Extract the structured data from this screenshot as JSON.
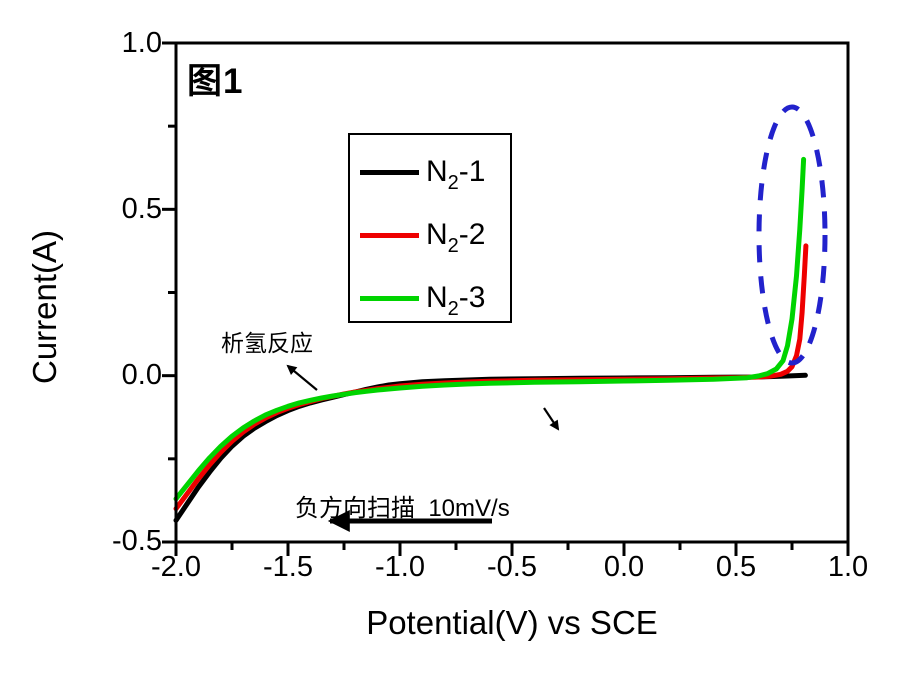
{
  "chart_data": {
    "type": "line",
    "title": "图1",
    "xlabel": "Potential(V) vs SCE",
    "ylabel": "Current(A)",
    "xlim": [
      -2.0,
      1.0
    ],
    "ylim": [
      -0.5,
      1.0
    ],
    "grid": false,
    "x_ticks": [
      -2.0,
      -1.5,
      -1.0,
      -0.5,
      0.0,
      0.5,
      1.0
    ],
    "x_minor_ticks": [
      -1.75,
      -1.25,
      -0.75,
      -0.25,
      0.25,
      0.75
    ],
    "y_ticks": [
      1.0,
      0.5,
      0.0,
      -0.5
    ],
    "y_minor_ticks": [
      0.75,
      0.25,
      -0.25
    ],
    "x_tick_labels": [
      "-2.0",
      "-1.5",
      "-1.0",
      "-0.5",
      "0.0",
      "0.5",
      "1.0"
    ],
    "y_tick_labels": [
      "1.0",
      "0.5",
      "0.0",
      "-0.5"
    ],
    "legend": {
      "position": "upper-left-of-center",
      "items": [
        {
          "pre": "N",
          "sub": "2",
          "post": "-1",
          "color": "#000000"
        },
        {
          "pre": "N",
          "sub": "2",
          "post": "-2",
          "color": "#ee0000"
        },
        {
          "pre": "N",
          "sub": "2",
          "post": "-3",
          "color": "#00d400"
        }
      ]
    },
    "series": [
      {
        "name": "N2-1",
        "color": "#000000",
        "width": 5,
        "points": [
          [
            -2.0,
            -0.435
          ],
          [
            -1.95,
            -0.385
          ],
          [
            -1.9,
            -0.335
          ],
          [
            -1.85,
            -0.29
          ],
          [
            -1.8,
            -0.248
          ],
          [
            -1.75,
            -0.212
          ],
          [
            -1.7,
            -0.182
          ],
          [
            -1.65,
            -0.158
          ],
          [
            -1.6,
            -0.138
          ],
          [
            -1.55,
            -0.12
          ],
          [
            -1.5,
            -0.105
          ],
          [
            -1.45,
            -0.092
          ],
          [
            -1.4,
            -0.082
          ],
          [
            -1.35,
            -0.073
          ],
          [
            -1.3,
            -0.065
          ],
          [
            -1.25,
            -0.057
          ],
          [
            -1.2,
            -0.049
          ],
          [
            -1.15,
            -0.041
          ],
          [
            -1.1,
            -0.034
          ],
          [
            -1.05,
            -0.028
          ],
          [
            -1.0,
            -0.024
          ],
          [
            -0.9,
            -0.018
          ],
          [
            -0.8,
            -0.015
          ],
          [
            -0.7,
            -0.013
          ],
          [
            -0.6,
            -0.011
          ],
          [
            -0.4,
            -0.009
          ],
          [
            -0.2,
            -0.008
          ],
          [
            0.0,
            -0.007
          ],
          [
            0.2,
            -0.006
          ],
          [
            0.4,
            -0.005
          ],
          [
            0.6,
            -0.004
          ],
          [
            0.7,
            -0.002
          ],
          [
            0.81,
            0.001
          ]
        ]
      },
      {
        "name": "N2-2",
        "color": "#ee0000",
        "width": 5,
        "points": [
          [
            -2.0,
            -0.4
          ],
          [
            -1.95,
            -0.355
          ],
          [
            -1.9,
            -0.31
          ],
          [
            -1.85,
            -0.268
          ],
          [
            -1.8,
            -0.23
          ],
          [
            -1.75,
            -0.197
          ],
          [
            -1.7,
            -0.169
          ],
          [
            -1.65,
            -0.146
          ],
          [
            -1.6,
            -0.127
          ],
          [
            -1.55,
            -0.111
          ],
          [
            -1.5,
            -0.098
          ],
          [
            -1.45,
            -0.087
          ],
          [
            -1.4,
            -0.078
          ],
          [
            -1.35,
            -0.069
          ],
          [
            -1.3,
            -0.062
          ],
          [
            -1.25,
            -0.055
          ],
          [
            -1.2,
            -0.049
          ],
          [
            -1.15,
            -0.044
          ],
          [
            -1.1,
            -0.039
          ],
          [
            -1.05,
            -0.035
          ],
          [
            -1.0,
            -0.031
          ],
          [
            -0.9,
            -0.026
          ],
          [
            -0.8,
            -0.022
          ],
          [
            -0.7,
            -0.019
          ],
          [
            -0.6,
            -0.017
          ],
          [
            -0.4,
            -0.014
          ],
          [
            -0.2,
            -0.012
          ],
          [
            0.0,
            -0.011
          ],
          [
            0.2,
            -0.009
          ],
          [
            0.4,
            -0.007
          ],
          [
            0.5,
            -0.006
          ],
          [
            0.6,
            -0.004
          ],
          [
            0.65,
            -0.002
          ],
          [
            0.7,
            0.004
          ],
          [
            0.73,
            0.013
          ],
          [
            0.75,
            0.027
          ],
          [
            0.77,
            0.06
          ],
          [
            0.785,
            0.11
          ],
          [
            0.795,
            0.19
          ],
          [
            0.805,
            0.3
          ],
          [
            0.812,
            0.39
          ]
        ]
      },
      {
        "name": "N2-3",
        "color": "#00d400",
        "width": 5,
        "points": [
          [
            -2.0,
            -0.37
          ],
          [
            -1.95,
            -0.328
          ],
          [
            -1.9,
            -0.286
          ],
          [
            -1.85,
            -0.247
          ],
          [
            -1.8,
            -0.212
          ],
          [
            -1.75,
            -0.182
          ],
          [
            -1.7,
            -0.157
          ],
          [
            -1.65,
            -0.136
          ],
          [
            -1.6,
            -0.118
          ],
          [
            -1.55,
            -0.104
          ],
          [
            -1.5,
            -0.092
          ],
          [
            -1.45,
            -0.082
          ],
          [
            -1.4,
            -0.074
          ],
          [
            -1.35,
            -0.067
          ],
          [
            -1.3,
            -0.061
          ],
          [
            -1.25,
            -0.056
          ],
          [
            -1.2,
            -0.051
          ],
          [
            -1.15,
            -0.047
          ],
          [
            -1.1,
            -0.043
          ],
          [
            -1.05,
            -0.04
          ],
          [
            -1.0,
            -0.037
          ],
          [
            -0.9,
            -0.032
          ],
          [
            -0.8,
            -0.028
          ],
          [
            -0.7,
            -0.025
          ],
          [
            -0.6,
            -0.023
          ],
          [
            -0.4,
            -0.02
          ],
          [
            -0.2,
            -0.018
          ],
          [
            0.0,
            -0.016
          ],
          [
            0.2,
            -0.014
          ],
          [
            0.4,
            -0.011
          ],
          [
            0.5,
            -0.008
          ],
          [
            0.55,
            -0.006
          ],
          [
            0.6,
            -0.001
          ],
          [
            0.64,
            0.006
          ],
          [
            0.68,
            0.02
          ],
          [
            0.71,
            0.045
          ],
          [
            0.73,
            0.09
          ],
          [
            0.75,
            0.17
          ],
          [
            0.77,
            0.3
          ],
          [
            0.785,
            0.44
          ],
          [
            0.795,
            0.56
          ],
          [
            0.802,
            0.65
          ]
        ]
      }
    ],
    "annotations": [
      {
        "text": "析氢反应",
        "meaning": "hydrogen evolution reaction",
        "arrow": "points up-left toward label from curve knee"
      },
      {
        "text": "负方向扫描  10mV/s",
        "meaning": "negative-direction scan 10 mV/s",
        "arrow": "thick arrow pointing left"
      },
      {
        "text": "",
        "meaning": "small arrow pointing down-right near center of plot"
      }
    ],
    "highlight": {
      "shape": "ellipse",
      "style": "dashed",
      "color": "#2222cc",
      "x_range": [
        0.61,
        0.9
      ],
      "y_range": [
        0.04,
        0.81
      ],
      "note": "dashed ellipse circling the anodic current rise of N2-2 and N2-3"
    }
  }
}
